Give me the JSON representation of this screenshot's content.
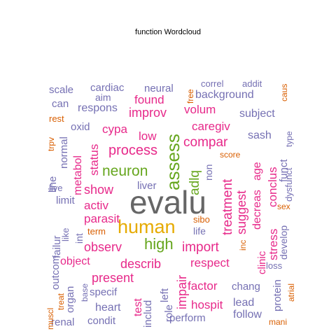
{
  "colors": {
    "gray": "#666666",
    "green": "#66a61e",
    "gold": "#e6ab02",
    "pink": "#e7298a",
    "purple": "#7570b3",
    "orange": "#d95f02"
  },
  "chart_data": {
    "type": "wordcloud",
    "title": "function  Wordcloud",
    "words": [
      {
        "text": "evalu",
        "color": "gray"
      },
      {
        "text": "human",
        "color": "gold"
      },
      {
        "text": "assess",
        "color": "green"
      },
      {
        "text": "neuron",
        "color": "green"
      },
      {
        "text": "high",
        "color": "green"
      },
      {
        "text": "adlq",
        "color": "green"
      },
      {
        "text": "process",
        "color": "pink"
      },
      {
        "text": "treatment",
        "color": "pink"
      },
      {
        "text": "compar",
        "color": "pink"
      },
      {
        "text": "import",
        "color": "pink"
      },
      {
        "text": "show",
        "color": "pink"
      },
      {
        "text": "suggest",
        "color": "pink"
      },
      {
        "text": "describ",
        "color": "pink"
      },
      {
        "text": "observ",
        "color": "pink"
      },
      {
        "text": "parasit",
        "color": "pink"
      },
      {
        "text": "activ",
        "color": "pink"
      },
      {
        "text": "present",
        "color": "pink"
      },
      {
        "text": "impair",
        "color": "pink"
      },
      {
        "text": "respect",
        "color": "pink"
      },
      {
        "text": "object",
        "color": "pink"
      },
      {
        "text": "hospit",
        "color": "pink"
      },
      {
        "text": "factor",
        "color": "pink"
      },
      {
        "text": "stress",
        "color": "pink"
      },
      {
        "text": "clinic",
        "color": "pink"
      },
      {
        "text": "decreas",
        "color": "pink"
      },
      {
        "text": "age",
        "color": "pink"
      },
      {
        "text": "conclus",
        "color": "pink"
      },
      {
        "text": "caregiv",
        "color": "pink"
      },
      {
        "text": "volum",
        "color": "pink"
      },
      {
        "text": "improv",
        "color": "pink"
      },
      {
        "text": "found",
        "color": "pink"
      },
      {
        "text": "low",
        "color": "pink"
      },
      {
        "text": "cypa",
        "color": "pink"
      },
      {
        "text": "status",
        "color": "pink"
      },
      {
        "text": "metabol",
        "color": "pink"
      },
      {
        "text": "test",
        "color": "pink"
      },
      {
        "text": "background",
        "color": "purple"
      },
      {
        "text": "scale",
        "color": "purple"
      },
      {
        "text": "cardiac",
        "color": "purple"
      },
      {
        "text": "neural",
        "color": "purple"
      },
      {
        "text": "correl",
        "color": "purple"
      },
      {
        "text": "addit",
        "color": "purple"
      },
      {
        "text": "can",
        "color": "purple"
      },
      {
        "text": "aim",
        "color": "purple"
      },
      {
        "text": "respons",
        "color": "purple"
      },
      {
        "text": "subject",
        "color": "purple"
      },
      {
        "text": "oxid",
        "color": "purple"
      },
      {
        "text": "normal",
        "color": "purple"
      },
      {
        "text": "line",
        "color": "purple"
      },
      {
        "text": "sash",
        "color": "purple"
      },
      {
        "text": "funct",
        "color": "purple"
      },
      {
        "text": "type",
        "color": "purple"
      },
      {
        "text": "non",
        "color": "purple"
      },
      {
        "text": "liver",
        "color": "purple"
      },
      {
        "text": "live",
        "color": "purple"
      },
      {
        "text": "limit",
        "color": "purple"
      },
      {
        "text": "failur",
        "color": "purple"
      },
      {
        "text": "dysfunct",
        "color": "purple"
      },
      {
        "text": "like",
        "color": "purple"
      },
      {
        "text": "int",
        "color": "purple"
      },
      {
        "text": "life",
        "color": "purple"
      },
      {
        "text": "develop",
        "color": "purple"
      },
      {
        "text": "outcom",
        "color": "purple"
      },
      {
        "text": "loss",
        "color": "purple"
      },
      {
        "text": "organ",
        "color": "purple"
      },
      {
        "text": "specif",
        "color": "purple"
      },
      {
        "text": "role",
        "color": "purple"
      },
      {
        "text": "left",
        "color": "purple"
      },
      {
        "text": "chang",
        "color": "purple"
      },
      {
        "text": "protein",
        "color": "purple"
      },
      {
        "text": "base",
        "color": "purple"
      },
      {
        "text": "heart",
        "color": "purple"
      },
      {
        "text": "includ",
        "color": "purple"
      },
      {
        "text": "lead",
        "color": "purple"
      },
      {
        "text": "renal",
        "color": "purple"
      },
      {
        "text": "condit",
        "color": "purple"
      },
      {
        "text": "perform",
        "color": "purple"
      },
      {
        "text": "follow",
        "color": "purple"
      },
      {
        "text": "free",
        "color": "orange"
      },
      {
        "text": "caus",
        "color": "orange"
      },
      {
        "text": "rest",
        "color": "orange"
      },
      {
        "text": "trpv",
        "color": "orange"
      },
      {
        "text": "score",
        "color": "orange"
      },
      {
        "text": "term",
        "color": "orange"
      },
      {
        "text": "sibo",
        "color": "orange"
      },
      {
        "text": "inc",
        "color": "orange"
      },
      {
        "text": "sex",
        "color": "orange"
      },
      {
        "text": "muscl",
        "color": "orange"
      },
      {
        "text": "treat",
        "color": "orange"
      },
      {
        "text": "atrial",
        "color": "orange"
      },
      {
        "text": "mani",
        "color": "orange"
      }
    ]
  }
}
